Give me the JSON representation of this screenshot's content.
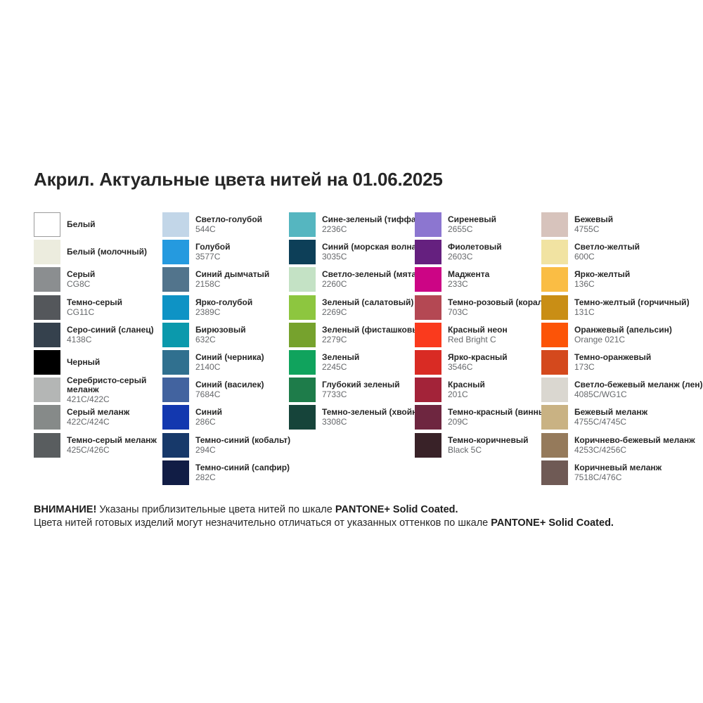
{
  "title": "Акрил. Актуальные цвета нитей на 01.06.2025",
  "columns": [
    {
      "items": [
        {
          "name": "Белый",
          "code": "",
          "color": "#FFFFFF",
          "border": true
        },
        {
          "name": "Белый (молочный)",
          "code": "",
          "color": "#ECECDE"
        },
        {
          "name": "Серый",
          "code": "CG8C",
          "color": "#8B8E90"
        },
        {
          "name": "Темно-серый",
          "code": "CG11C",
          "color": "#54575B"
        },
        {
          "name": "Серо-синий (сланец)",
          "code": "4138C",
          "color": "#35414D"
        },
        {
          "name": "Черный",
          "code": "",
          "color": "#000000"
        },
        {
          "name": "Серебристо-серый\nмеланж",
          "code": "421C/422C",
          "color": "#B4B6B5"
        },
        {
          "name": "Серый меланж",
          "code": "422C/424C",
          "color": "#868A89"
        },
        {
          "name": "Темно-серый меланж",
          "code": "425C/426C",
          "color": "#595D5F"
        }
      ]
    },
    {
      "items": [
        {
          "name": "Светло-голубой",
          "code": "544C",
          "color": "#C2D6E8"
        },
        {
          "name": "Голубой",
          "code": "3577C",
          "color": "#259ADF"
        },
        {
          "name": "Синий дымчатый",
          "code": "2158C",
          "color": "#52748C"
        },
        {
          "name": "Ярко-голубой",
          "code": "2389C",
          "color": "#0E93C5"
        },
        {
          "name": "Бирюзовый",
          "code": "632C",
          "color": "#0B99AC"
        },
        {
          "name": "Синий (черника)",
          "code": "2140C",
          "color": "#30708F"
        },
        {
          "name": "Синий (василек)",
          "code": "7684C",
          "color": "#42639F"
        },
        {
          "name": "Синий",
          "code": "286C",
          "color": "#1338AF"
        },
        {
          "name": "Темно-синий (кобальт)",
          "code": "294C",
          "color": "#17396A"
        },
        {
          "name": "Темно-синий (сапфир)",
          "code": "282C",
          "color": "#111D45"
        }
      ]
    },
    {
      "items": [
        {
          "name": "Сине-зеленый (тиффани)",
          "code": "2236C",
          "color": "#55B6C0"
        },
        {
          "name": "Синий (морская волна)",
          "code": "3035C",
          "color": "#0D3F58"
        },
        {
          "name": "Светло-зеленый (мята)",
          "code": "2260C",
          "color": "#C4E2C5"
        },
        {
          "name": "Зеленый (салатовый)",
          "code": "2269C",
          "color": "#8DC63F"
        },
        {
          "name": "Зеленый (фисташковый)",
          "code": "2279C",
          "color": "#76A22D"
        },
        {
          "name": "Зеленый",
          "code": "2245C",
          "color": "#10A35D"
        },
        {
          "name": "Глубокий зеленый",
          "code": "7733C",
          "color": "#1E7C4A"
        },
        {
          "name": "Темно-зеленый (хвойный)",
          "code": "3308C",
          "color": "#16443A"
        }
      ]
    },
    {
      "items": [
        {
          "name": "Сиреневый",
          "code": "2655C",
          "color": "#8C76D0"
        },
        {
          "name": "Фиолетовый",
          "code": "2603C",
          "color": "#65207F"
        },
        {
          "name": "Маджента",
          "code": "233C",
          "color": "#CC0585"
        },
        {
          "name": "Темно-розовый (коралл)",
          "code": "703C",
          "color": "#B44853"
        },
        {
          "name": "Красный неон",
          "code": "Red Bright C",
          "color": "#FA3A1D"
        },
        {
          "name": "Ярко-красный",
          "code": "3546C",
          "color": "#D92B24"
        },
        {
          "name": "Красный",
          "code": "201C",
          "color": "#A32339"
        },
        {
          "name": "Темно-красный (винный)",
          "code": "209C",
          "color": "#6E2640"
        },
        {
          "name": "Темно-коричневый",
          "code": "Black 5C",
          "color": "#392228"
        }
      ]
    },
    {
      "items": [
        {
          "name": "Бежевый",
          "code": "4755C",
          "color": "#D7C3BC"
        },
        {
          "name": "Светло-желтый",
          "code": "600C",
          "color": "#F1E3A2"
        },
        {
          "name": "Ярко-желтый",
          "code": "136C",
          "color": "#FABD44"
        },
        {
          "name": "Темно-желтый (горчичный)",
          "code": "131C",
          "color": "#C98E15"
        },
        {
          "name": "Оранжевый (апельсин)",
          "code": "Orange 021C",
          "color": "#FC5407"
        },
        {
          "name": "Темно-оранжевый",
          "code": "173C",
          "color": "#D4491D"
        },
        {
          "name": "Светло-бежевый меланж (лен)",
          "code": "4085C/WG1C",
          "color": "#DAD7D0"
        },
        {
          "name": "Бежевый меланж",
          "code": "4755C/4745C",
          "color": "#C9B283"
        },
        {
          "name": "Коричнево-бежевый меланж",
          "code": "4253C/4256C",
          "color": "#957A5B"
        },
        {
          "name": "Коричневый меланж",
          "code": "7518C/476C",
          "color": "#6F5A55"
        }
      ]
    }
  ],
  "footer": {
    "attention": "ВНИМАНИЕ!",
    "line1": " Указаны приблизительные цвета нитей по шкале ",
    "line2": "Цвета нитей готовых изделий могут незначительно отличаться от указанных оттенков по шкале ",
    "pantone": "PANTONE+ Solid Coated."
  }
}
